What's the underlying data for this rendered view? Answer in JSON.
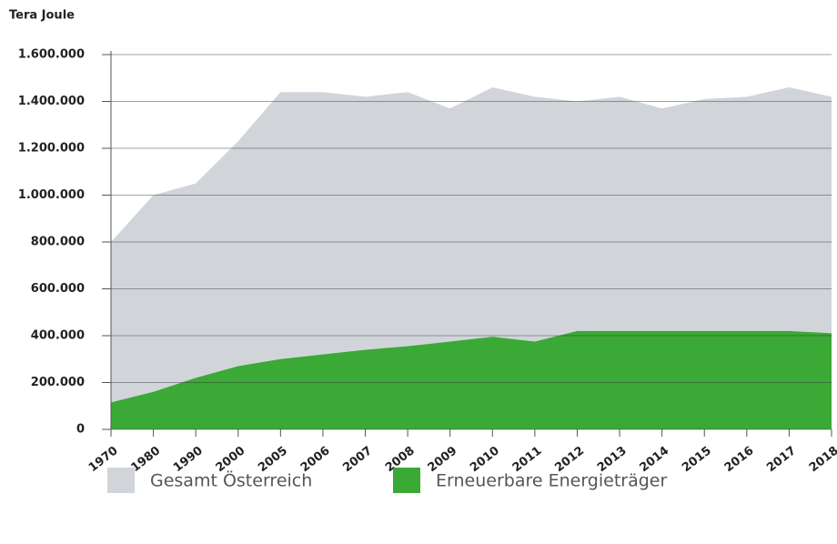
{
  "chart_data": {
    "type": "area",
    "y_label": "Tera Joule",
    "categories": [
      "1970",
      "1980",
      "1990",
      "2000",
      "2005",
      "2006",
      "2007",
      "2008",
      "2009",
      "2010",
      "2011",
      "2012",
      "2013",
      "2014",
      "2015",
      "2016",
      "2017",
      "2018"
    ],
    "series": [
      {
        "name": "Gesamt Österreich",
        "color": "#d1d5da",
        "values": [
          800000,
          1000000,
          1050000,
          1230000,
          1440000,
          1440000,
          1420000,
          1440000,
          1370000,
          1460000,
          1420000,
          1400000,
          1420000,
          1370000,
          1410000,
          1420000,
          1460000,
          1420000
        ]
      },
      {
        "name": "Erneuerbare Energieträger",
        "color": "#3aa935",
        "values": [
          115000,
          160000,
          220000,
          270000,
          300000,
          320000,
          340000,
          355000,
          375000,
          395000,
          375000,
          420000,
          420000,
          420000,
          420000,
          420000,
          420000,
          410000
        ]
      }
    ],
    "ylim": [
      0,
      1600000
    ],
    "yticks": [
      0,
      {
        "value": 200000,
        "label": "200.000"
      },
      {
        "value": 400000,
        "label": "400.000"
      },
      {
        "value": 600000,
        "label": "600.000"
      },
      {
        "value": 800000,
        "label": "800.000"
      },
      {
        "value": 1000000,
        "label": "1.000.000"
      },
      {
        "value": 1200000,
        "label": "1.200.000"
      },
      {
        "value": 1400000,
        "label": "1.400.000"
      },
      {
        "value": 1600000,
        "label": "1.600.000"
      }
    ],
    "grid": true
  }
}
